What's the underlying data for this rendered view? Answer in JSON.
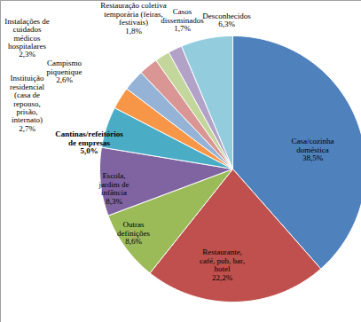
{
  "chart_data": {
    "type": "pie",
    "categories": [
      "Casa/cozinha doméstica",
      "Restaurante, café, pub, bar, hotel",
      "Outras definições",
      "Escola, jardim de infância",
      "Cantinas/refeitórios de empresas",
      "Instituição residencial (casa de repouso, prisão, internato)",
      "Campismo piquenique",
      "Instalações de cuidados médicos hospitalares",
      "Restauração coletiva temporária (feiras, festivais)",
      "Casos disseminados",
      "Desconhecidos"
    ],
    "values": [
      38.5,
      22.2,
      8.6,
      8.3,
      5.0,
      2.7,
      2.6,
      2.3,
      1.8,
      1.7,
      6.3
    ],
    "value_labels": [
      "38,5%",
      "22,2%",
      "8,6%",
      "8,3%",
      "5,0%",
      "2,7%",
      "2,6%",
      "2,3%",
      "1,8%",
      "1,7%",
      "6,3%"
    ],
    "colors": [
      "#4f81bd",
      "#c0504d",
      "#9bbb59",
      "#8064a2",
      "#4bacc6",
      "#f79646",
      "#95b3d7",
      "#d99694",
      "#c3d69b",
      "#b3a2c7",
      "#93cddd"
    ],
    "data_labels": true
  }
}
